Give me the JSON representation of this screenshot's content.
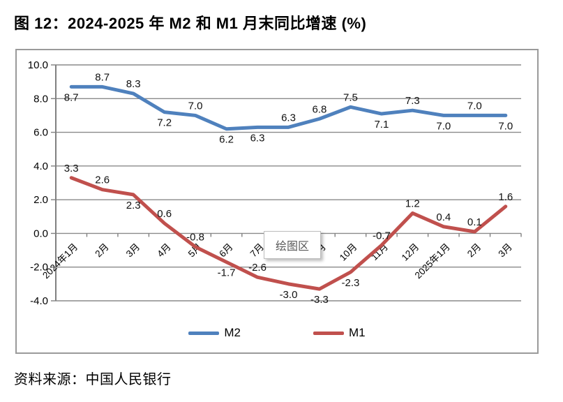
{
  "page": {
    "title": "图 12：2024-2025 年 M2 和 M1 月末同比增速 (%)",
    "source": "资料来源：中国人民银行"
  },
  "tooltip": {
    "label": "绘图区"
  },
  "chart_data": {
    "type": "line",
    "title": "图 12：2024-2025 年 M2 和 M1 月末同比增速 (%)",
    "categories": [
      "2024年1月",
      "2月",
      "3月",
      "4月",
      "5月",
      "6月",
      "7月",
      "8月",
      "9月",
      "10月",
      "11月",
      "12月",
      "2025年1月",
      "2月",
      "3月"
    ],
    "series": [
      {
        "name": "M2",
        "color": "#4F81BD",
        "values": [
          8.7,
          8.7,
          8.3,
          7.2,
          7.0,
          6.2,
          6.3,
          6.3,
          6.8,
          7.5,
          7.1,
          7.3,
          7.0,
          7.0,
          7.0
        ],
        "label_pos": [
          "below",
          "above",
          "above",
          "below",
          "above",
          "below",
          "below",
          "above",
          "above",
          "above",
          "below",
          "above",
          "below",
          "above",
          "below"
        ]
      },
      {
        "name": "M1",
        "color": "#C0504D",
        "values": [
          3.3,
          2.6,
          2.3,
          0.6,
          -0.8,
          -1.7,
          -2.6,
          -3.0,
          -3.3,
          -2.3,
          -0.7,
          1.2,
          0.4,
          0.1,
          1.6
        ],
        "label_pos": [
          "above",
          "above",
          "below",
          "above",
          "above",
          "below",
          "above",
          "below",
          "below",
          "below",
          "above",
          "above",
          "above",
          "above",
          "above"
        ]
      }
    ],
    "xlabel": "",
    "ylabel": "",
    "ylim": [
      -4,
      10
    ],
    "ytick_step": 2,
    "ytick_labels": [
      "10.0",
      "8.0",
      "6.0",
      "4.0",
      "2.0",
      "0.0",
      "-2.0",
      "-4.0"
    ],
    "grid": true,
    "legend_position": "bottom",
    "grid_color": "#8a8a8a",
    "axis_color": "#808080",
    "label_color": "#111111"
  }
}
